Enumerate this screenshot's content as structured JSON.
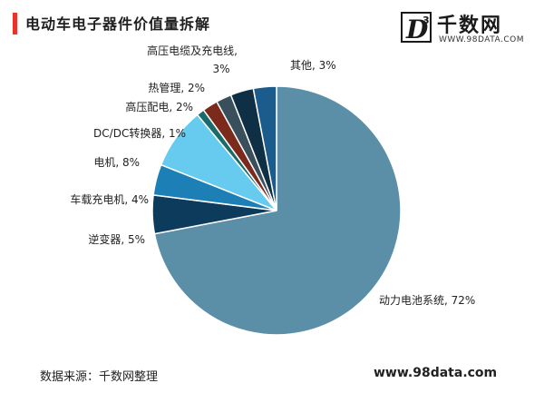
{
  "header": {
    "title": "电动车电子器件价值量拆解"
  },
  "logo": {
    "badge_letter": "D",
    "badge_superscript": "3",
    "name": "千数网",
    "url": "WWW.98DATA.COM"
  },
  "footer": {
    "source": "数据来源：千数网整理",
    "url": "www.98data.com"
  },
  "colors": {
    "accent": "#e8342a"
  },
  "chart_data": {
    "type": "pie",
    "title": "电动车电子器件价值量拆解",
    "unit": "%",
    "slices": [
      {
        "name": "动力电池系统",
        "value": 72,
        "color": "#5b8fa8",
        "label": "动力电池系统, 72%"
      },
      {
        "name": "逆变器",
        "value": 5,
        "color": "#0d3b5c",
        "label": "逆变器, 5%"
      },
      {
        "name": "车载充电机",
        "value": 4,
        "color": "#1c7fb5",
        "label": "车载充电机, 4%"
      },
      {
        "name": "电机",
        "value": 8,
        "color": "#66cbee",
        "label": "电机, 8%"
      },
      {
        "name": "DC/DC转换器",
        "value": 1,
        "color": "#1a6b6b",
        "label": "DC/DC转换器, 1%"
      },
      {
        "name": "高压配电",
        "value": 2,
        "color": "#7b2a1c",
        "label": "高压配电, 2%"
      },
      {
        "name": "热管理",
        "value": 2,
        "color": "#3a4f5c",
        "label": "热管理, 2%"
      },
      {
        "name": "高压电缆及充电线",
        "value": 3,
        "color": "#0f2f45",
        "label_line1": "高压电缆及充电线,",
        "label_line2": "3%"
      },
      {
        "name": "其他",
        "value": 3,
        "color": "#1b5c8c",
        "label": "其他, 3%"
      }
    ]
  }
}
